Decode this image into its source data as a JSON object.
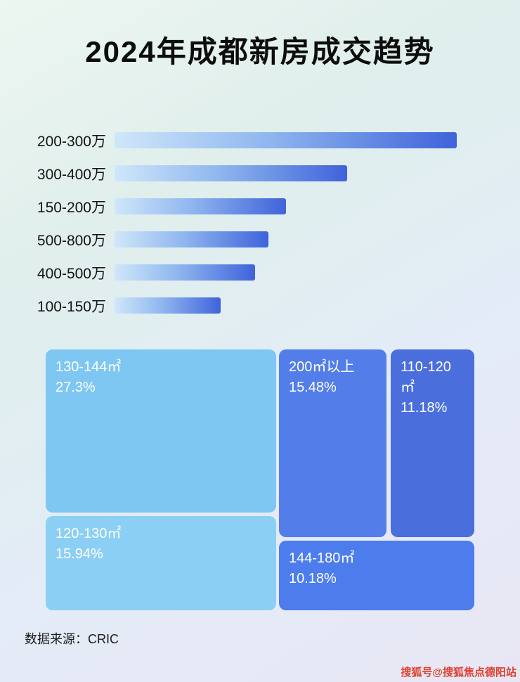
{
  "title": "2024年成都新房成交趋势",
  "bar_chart": {
    "rows": [
      {
        "label": "200-300万",
        "pct": 100
      },
      {
        "label": "300-400万",
        "pct": 68
      },
      {
        "label": "150-200万",
        "pct": 50
      },
      {
        "label": "500-800万",
        "pct": 45
      },
      {
        "label": "400-500万",
        "pct": 41
      },
      {
        "label": "100-150万",
        "pct": 31
      }
    ]
  },
  "treemap": {
    "blocks": [
      {
        "label": "130-144㎡",
        "percent": "27.3%"
      },
      {
        "label": "200㎡以上",
        "percent": "15.48%"
      },
      {
        "label": "110-120㎡",
        "percent": "11.18%"
      },
      {
        "label": "120-130㎡",
        "percent": "15.94%"
      },
      {
        "label": "144-180㎡",
        "percent": "10.18%"
      }
    ]
  },
  "footer": {
    "source": "数据来源：CRIC"
  },
  "watermark": "搜狐号@搜狐焦点德阳站",
  "colors": {
    "bar_gradient_start": "#cfe7fa",
    "bar_gradient_end": "#3f63da",
    "block_light_blue_1": "#7fc7f3",
    "block_light_blue_2": "#8ccff5",
    "block_blue_1": "#537ee9",
    "block_blue_2": "#4a6fdd",
    "block_blue_3": "#4d7cec",
    "watermark_red": "#df4030"
  },
  "chart_data": [
    {
      "type": "bar",
      "orientation": "horizontal",
      "title": "2024年成都新房成交趋势",
      "categories": [
        "200-300万",
        "300-400万",
        "150-200万",
        "500-800万",
        "400-500万",
        "100-150万"
      ],
      "values": [
        100,
        68,
        50,
        45,
        41,
        31
      ],
      "values_note": "bars carry no numeric labels; values are relative bar lengths as percent of longest bar",
      "xlabel": "",
      "ylabel": "",
      "grid": false,
      "legend": false
    },
    {
      "type": "treemap",
      "title": "",
      "items": [
        {
          "label": "130-144㎡",
          "value": 27.3
        },
        {
          "label": "200㎡以上",
          "value": 15.48
        },
        {
          "label": "120-130㎡",
          "value": 15.94
        },
        {
          "label": "110-120㎡",
          "value": 11.18
        },
        {
          "label": "144-180㎡",
          "value": 10.18
        }
      ],
      "value_unit": "%",
      "legend": false
    }
  ]
}
